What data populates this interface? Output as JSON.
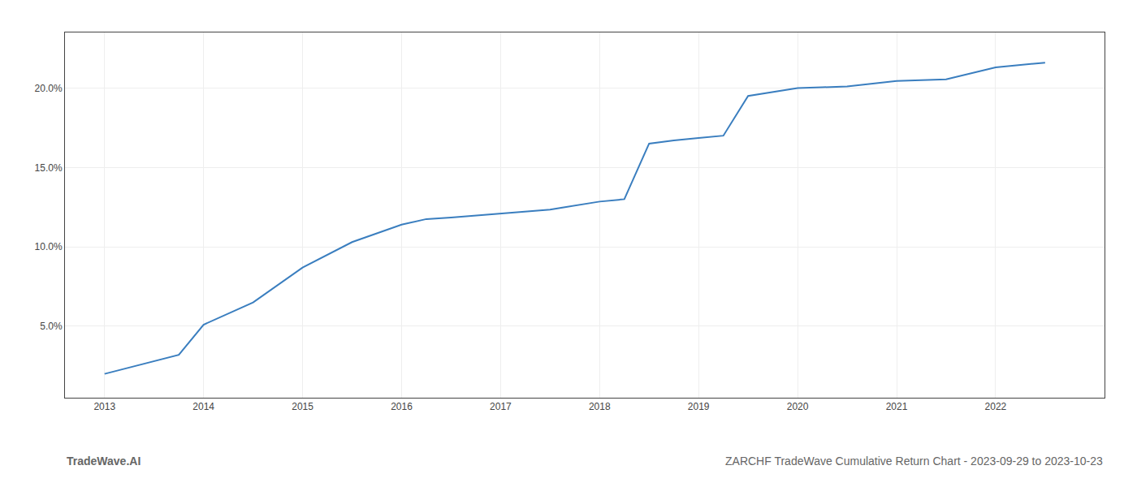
{
  "chart_data": {
    "type": "line",
    "x": [
      2013.0,
      2013.75,
      2014.0,
      2014.5,
      2015.0,
      2015.5,
      2016.0,
      2016.25,
      2016.5,
      2017.0,
      2017.25,
      2017.5,
      2018.0,
      2018.25,
      2018.5,
      2018.75,
      2019.0,
      2019.25,
      2019.5,
      2020.0,
      2020.25,
      2020.5,
      2021.0,
      2021.25,
      2021.5,
      2022.0,
      2022.5
    ],
    "values": [
      2.0,
      3.2,
      5.1,
      6.5,
      8.7,
      10.3,
      11.4,
      11.75,
      11.85,
      12.1,
      12.2,
      12.35,
      12.85,
      13.0,
      16.5,
      16.7,
      16.85,
      17.0,
      19.5,
      20.0,
      20.05,
      20.1,
      20.45,
      20.5,
      20.55,
      21.3,
      21.6
    ],
    "color": "#3a7ebf",
    "xlim": [
      2012.6,
      2023.1
    ],
    "xticks": [
      2013,
      2014,
      2015,
      2016,
      2017,
      2018,
      2019,
      2020,
      2021,
      2022
    ],
    "ylim": [
      0.5,
      23.5
    ],
    "yticks": [
      {
        "value": 5.0,
        "label": "5.0%"
      },
      {
        "value": 10.0,
        "label": "10.0%"
      },
      {
        "value": 15.0,
        "label": "15.0%"
      },
      {
        "value": 20.0,
        "label": "20.0%"
      }
    ],
    "grid": true,
    "annotations": [
      "TradeWave.AI",
      "ZARCHF TradeWave Cumulative Return Chart - 2023-09-29 to 2023-10-23"
    ]
  }
}
